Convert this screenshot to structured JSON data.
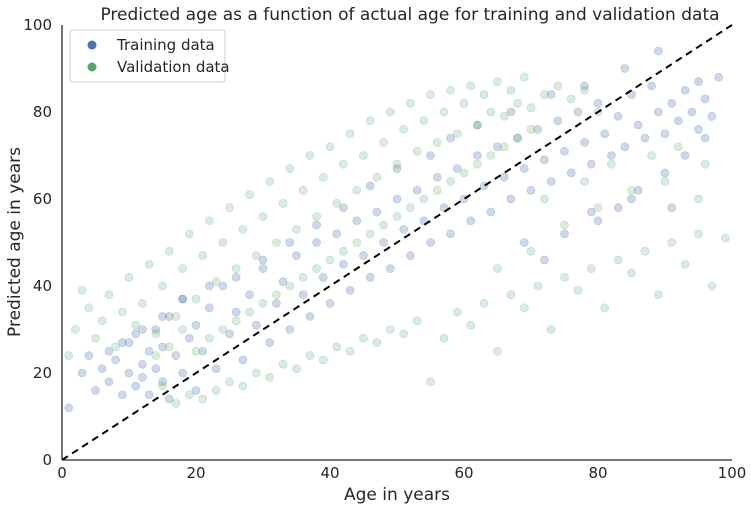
{
  "chart_data": {
    "type": "scatter",
    "title": "Predicted age as a function of actual age for training and validation data",
    "xlabel": "Age in years",
    "ylabel": "Predicted age in years",
    "xlim": [
      0,
      100
    ],
    "ylim": [
      0,
      100
    ],
    "xticks": [
      "0",
      "20",
      "40",
      "60",
      "80",
      "100"
    ],
    "yticks": [
      "0",
      "20",
      "40",
      "60",
      "80",
      "100"
    ],
    "grid": false,
    "legend_position": "top-left",
    "reference_line": {
      "style": "dashed",
      "color": "#000000",
      "from": [
        0,
        0
      ],
      "to": [
        100,
        100
      ]
    },
    "series": [
      {
        "name": "Training data",
        "color": "#4c72b0",
        "points": [
          [
            1,
            12
          ],
          [
            3,
            20
          ],
          [
            4,
            24
          ],
          [
            5,
            16
          ],
          [
            6,
            21
          ],
          [
            7,
            18
          ],
          [
            8,
            23
          ],
          [
            9,
            15
          ],
          [
            10,
            20
          ],
          [
            10,
            27
          ],
          [
            11,
            17
          ],
          [
            11,
            29
          ],
          [
            12,
            22
          ],
          [
            12,
            19
          ],
          [
            13,
            25
          ],
          [
            13,
            15
          ],
          [
            14,
            21
          ],
          [
            14,
            30
          ],
          [
            15,
            18
          ],
          [
            15,
            26
          ],
          [
            16,
            33
          ],
          [
            16,
            14
          ],
          [
            17,
            24
          ],
          [
            18,
            20
          ],
          [
            18,
            37
          ],
          [
            19,
            28
          ],
          [
            20,
            16
          ],
          [
            20,
            31
          ],
          [
            21,
            25
          ],
          [
            22,
            35
          ],
          [
            23,
            21
          ],
          [
            24,
            40
          ],
          [
            25,
            29
          ],
          [
            26,
            34
          ],
          [
            27,
            23
          ],
          [
            28,
            38
          ],
          [
            29,
            31
          ],
          [
            30,
            44
          ],
          [
            31,
            27
          ],
          [
            32,
            36
          ],
          [
            33,
            41
          ],
          [
            34,
            30
          ],
          [
            35,
            47
          ],
          [
            36,
            38
          ],
          [
            37,
            33
          ],
          [
            38,
            50
          ],
          [
            39,
            42
          ],
          [
            40,
            36
          ],
          [
            41,
            52
          ],
          [
            42,
            45
          ],
          [
            43,
            39
          ],
          [
            44,
            55
          ],
          [
            45,
            47
          ],
          [
            46,
            42
          ],
          [
            47,
            57
          ],
          [
            48,
            50
          ],
          [
            49,
            44
          ],
          [
            50,
            60
          ],
          [
            51,
            53
          ],
          [
            52,
            47
          ],
          [
            53,
            62
          ],
          [
            54,
            55
          ],
          [
            55,
            50
          ],
          [
            56,
            65
          ],
          [
            57,
            58
          ],
          [
            58,
            52
          ],
          [
            59,
            67
          ],
          [
            60,
            60
          ],
          [
            61,
            55
          ],
          [
            62,
            70
          ],
          [
            63,
            63
          ],
          [
            64,
            57
          ],
          [
            65,
            72
          ],
          [
            66,
            65
          ],
          [
            67,
            60
          ],
          [
            68,
            74
          ],
          [
            69,
            67
          ],
          [
            70,
            62
          ],
          [
            71,
            76
          ],
          [
            72,
            69
          ],
          [
            73,
            64
          ],
          [
            74,
            78
          ],
          [
            75,
            71
          ],
          [
            76,
            66
          ],
          [
            77,
            80
          ],
          [
            78,
            73
          ],
          [
            79,
            68
          ],
          [
            80,
            82
          ],
          [
            81,
            75
          ],
          [
            82,
            70
          ],
          [
            83,
            79
          ],
          [
            84,
            72
          ],
          [
            85,
            84
          ],
          [
            86,
            77
          ],
          [
            87,
            74
          ],
          [
            88,
            86
          ],
          [
            89,
            80
          ],
          [
            90,
            75
          ],
          [
            91,
            82
          ],
          [
            92,
            78
          ],
          [
            93,
            85
          ],
          [
            94,
            80
          ],
          [
            95,
            76
          ],
          [
            96,
            83
          ],
          [
            97,
            79
          ],
          [
            98,
            88
          ],
          [
            89,
            94
          ],
          [
            95,
            87
          ],
          [
            84,
            90
          ],
          [
            78,
            86
          ],
          [
            73,
            84
          ],
          [
            67,
            80
          ],
          [
            62,
            77
          ],
          [
            58,
            74
          ],
          [
            55,
            70
          ],
          [
            50,
            67
          ],
          [
            46,
            63
          ],
          [
            42,
            58
          ],
          [
            38,
            54
          ],
          [
            34,
            50
          ],
          [
            30,
            46
          ],
          [
            26,
            42
          ],
          [
            22,
            40
          ],
          [
            18,
            37
          ],
          [
            15,
            33
          ],
          [
            12,
            30
          ],
          [
            9,
            27
          ],
          [
            7,
            25
          ],
          [
            69,
            50
          ],
          [
            72,
            46
          ],
          [
            75,
            52
          ],
          [
            79,
            57
          ],
          [
            83,
            58
          ],
          [
            86,
            62
          ],
          [
            90,
            66
          ],
          [
            93,
            70
          ],
          [
            96,
            74
          ],
          [
            91,
            58
          ],
          [
            85,
            60
          ],
          [
            80,
            55
          ]
        ]
      },
      {
        "name": "Validation data",
        "color": "#55a868",
        "points": [
          [
            1,
            24
          ],
          [
            2,
            30
          ],
          [
            3,
            39
          ],
          [
            4,
            35
          ],
          [
            5,
            28
          ],
          [
            6,
            32
          ],
          [
            7,
            38
          ],
          [
            8,
            26
          ],
          [
            9,
            34
          ],
          [
            10,
            42
          ],
          [
            11,
            31
          ],
          [
            12,
            36
          ],
          [
            13,
            45
          ],
          [
            14,
            29
          ],
          [
            15,
            40
          ],
          [
            16,
            48
          ],
          [
            17,
            33
          ],
          [
            18,
            44
          ],
          [
            19,
            52
          ],
          [
            20,
            37
          ],
          [
            21,
            47
          ],
          [
            22,
            55
          ],
          [
            23,
            41
          ],
          [
            24,
            50
          ],
          [
            25,
            58
          ],
          [
            26,
            44
          ],
          [
            27,
            53
          ],
          [
            28,
            61
          ],
          [
            29,
            47
          ],
          [
            30,
            56
          ],
          [
            31,
            64
          ],
          [
            32,
            50
          ],
          [
            33,
            59
          ],
          [
            34,
            67
          ],
          [
            35,
            53
          ],
          [
            36,
            62
          ],
          [
            37,
            70
          ],
          [
            38,
            56
          ],
          [
            39,
            65
          ],
          [
            40,
            72
          ],
          [
            41,
            59
          ],
          [
            42,
            68
          ],
          [
            43,
            75
          ],
          [
            44,
            62
          ],
          [
            45,
            70
          ],
          [
            46,
            78
          ],
          [
            47,
            65
          ],
          [
            48,
            73
          ],
          [
            49,
            80
          ],
          [
            50,
            68
          ],
          [
            51,
            76
          ],
          [
            52,
            82
          ],
          [
            53,
            71
          ],
          [
            54,
            78
          ],
          [
            55,
            84
          ],
          [
            56,
            73
          ],
          [
            57,
            80
          ],
          [
            58,
            85
          ],
          [
            59,
            75
          ],
          [
            60,
            82
          ],
          [
            61,
            86
          ],
          [
            62,
            77
          ],
          [
            63,
            84
          ],
          [
            64,
            80
          ],
          [
            65,
            87
          ],
          [
            66,
            79
          ],
          [
            67,
            85
          ],
          [
            68,
            82
          ],
          [
            69,
            88
          ],
          [
            70,
            81
          ],
          [
            72,
            84
          ],
          [
            74,
            86
          ],
          [
            76,
            83
          ],
          [
            78,
            85
          ],
          [
            80,
            80
          ],
          [
            15,
            17
          ],
          [
            17,
            13
          ],
          [
            19,
            15
          ],
          [
            21,
            14
          ],
          [
            23,
            16
          ],
          [
            25,
            18
          ],
          [
            27,
            17
          ],
          [
            29,
            20
          ],
          [
            31,
            19
          ],
          [
            33,
            22
          ],
          [
            35,
            21
          ],
          [
            37,
            24
          ],
          [
            39,
            23
          ],
          [
            41,
            26
          ],
          [
            43,
            25
          ],
          [
            45,
            28
          ],
          [
            47,
            27
          ],
          [
            49,
            30
          ],
          [
            51,
            29
          ],
          [
            53,
            32
          ],
          [
            55,
            18
          ],
          [
            57,
            28
          ],
          [
            59,
            34
          ],
          [
            61,
            31
          ],
          [
            63,
            36
          ],
          [
            65,
            25
          ],
          [
            67,
            38
          ],
          [
            69,
            35
          ],
          [
            71,
            40
          ],
          [
            73,
            30
          ],
          [
            75,
            42
          ],
          [
            77,
            39
          ],
          [
            79,
            44
          ],
          [
            81,
            35
          ],
          [
            83,
            46
          ],
          [
            85,
            43
          ],
          [
            87,
            48
          ],
          [
            89,
            38
          ],
          [
            91,
            50
          ],
          [
            93,
            45
          ],
          [
            95,
            52
          ],
          [
            97,
            40
          ],
          [
            99,
            51
          ],
          [
            65,
            44
          ],
          [
            70,
            48
          ],
          [
            75,
            54
          ],
          [
            80,
            58
          ],
          [
            85,
            62
          ],
          [
            90,
            64
          ],
          [
            95,
            60
          ],
          [
            72,
            60
          ],
          [
            78,
            64
          ],
          [
            82,
            68
          ],
          [
            88,
            70
          ],
          [
            92,
            72
          ],
          [
            96,
            68
          ],
          [
            20,
            25
          ],
          [
            22,
            28
          ],
          [
            24,
            30
          ],
          [
            26,
            32
          ],
          [
            28,
            34
          ],
          [
            30,
            36
          ],
          [
            32,
            38
          ],
          [
            34,
            40
          ],
          [
            36,
            42
          ],
          [
            38,
            44
          ],
          [
            40,
            46
          ],
          [
            42,
            48
          ],
          [
            44,
            50
          ],
          [
            46,
            52
          ],
          [
            48,
            54
          ],
          [
            50,
            56
          ],
          [
            52,
            58
          ],
          [
            54,
            60
          ],
          [
            56,
            62
          ],
          [
            58,
            64
          ],
          [
            60,
            66
          ],
          [
            62,
            68
          ],
          [
            64,
            70
          ],
          [
            66,
            72
          ],
          [
            68,
            74
          ],
          [
            70,
            76
          ],
          [
            18,
            30
          ],
          [
            16,
            26
          ],
          [
            14,
            24
          ]
        ]
      }
    ]
  }
}
